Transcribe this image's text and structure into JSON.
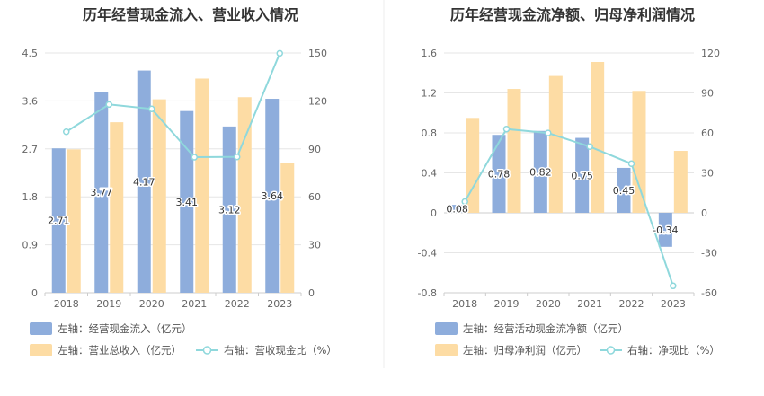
{
  "colors": {
    "bar_primary": "#8eaddc",
    "bar_secondary": "#fddca4",
    "line": "#8fd8dc",
    "grid": "#e6e6e6",
    "axis": "#cccccc",
    "divider": "#eeeeee"
  },
  "chart_data": [
    {
      "type": "bar",
      "title": "历年经营现金流入、营业收入情况",
      "categories": [
        "2018",
        "2019",
        "2020",
        "2021",
        "2022",
        "2023"
      ],
      "left_axis": {
        "ylim": [
          0,
          4.5
        ],
        "ticks": [
          "0",
          "0.9",
          "1.8",
          "2.7",
          "3.6",
          "4.5"
        ]
      },
      "right_axis": {
        "ylim": [
          0,
          150
        ],
        "ticks": [
          "0",
          "30",
          "60",
          "90",
          "120",
          "150"
        ]
      },
      "series": [
        {
          "name": "左轴：经营现金流入（亿元）",
          "axis": "left",
          "kind": "bar",
          "color_key": "bar_primary",
          "values": [
            2.71,
            3.77,
            4.17,
            3.41,
            3.12,
            3.64
          ],
          "data_labels": [
            "2.71",
            "3.77",
            "4.17",
            "3.41",
            "3.12",
            "3.64"
          ]
        },
        {
          "name": "左轴：营业总收入（亿元）",
          "axis": "left",
          "kind": "bar",
          "color_key": "bar_secondary",
          "values": [
            2.69,
            3.2,
            3.63,
            4.02,
            3.67,
            2.43
          ]
        },
        {
          "name": "右轴：营收现金比（%）",
          "axis": "right",
          "kind": "line",
          "color_key": "line",
          "values": [
            100.7,
            117.8,
            115.0,
            84.8,
            85.0,
            149.8
          ]
        }
      ],
      "legend": "bottom"
    },
    {
      "type": "bar",
      "title": "历年经营现金流净额、归母净利润情况",
      "categories": [
        "2018",
        "2019",
        "2020",
        "2021",
        "2022",
        "2023"
      ],
      "left_axis": {
        "ylim": [
          -0.8,
          1.6
        ],
        "ticks": [
          "-0.8",
          "-0.4",
          "0",
          "0.4",
          "0.8",
          "1.2",
          "1.6"
        ]
      },
      "right_axis": {
        "ylim": [
          -60,
          120
        ],
        "ticks": [
          "-60",
          "-30",
          "0",
          "30",
          "60",
          "90",
          "120"
        ]
      },
      "series": [
        {
          "name": "左轴：经营活动现金流净额（亿元）",
          "axis": "left",
          "kind": "bar",
          "color_key": "bar_primary",
          "values": [
            0.08,
            0.78,
            0.82,
            0.75,
            0.45,
            -0.34
          ],
          "data_labels": [
            "0.08",
            "0.78",
            "0.82",
            "0.75",
            "0.45",
            "-0.34"
          ]
        },
        {
          "name": "左轴：归母净利润（亿元）",
          "axis": "left",
          "kind": "bar",
          "color_key": "bar_secondary",
          "values": [
            0.95,
            1.24,
            1.37,
            1.51,
            1.22,
            0.62
          ]
        },
        {
          "name": "右轴：净现比（%）",
          "axis": "right",
          "kind": "line",
          "color_key": "line",
          "values": [
            8.4,
            62.9,
            59.9,
            49.7,
            36.9,
            -54.8
          ]
        }
      ],
      "legend": "bottom"
    }
  ]
}
